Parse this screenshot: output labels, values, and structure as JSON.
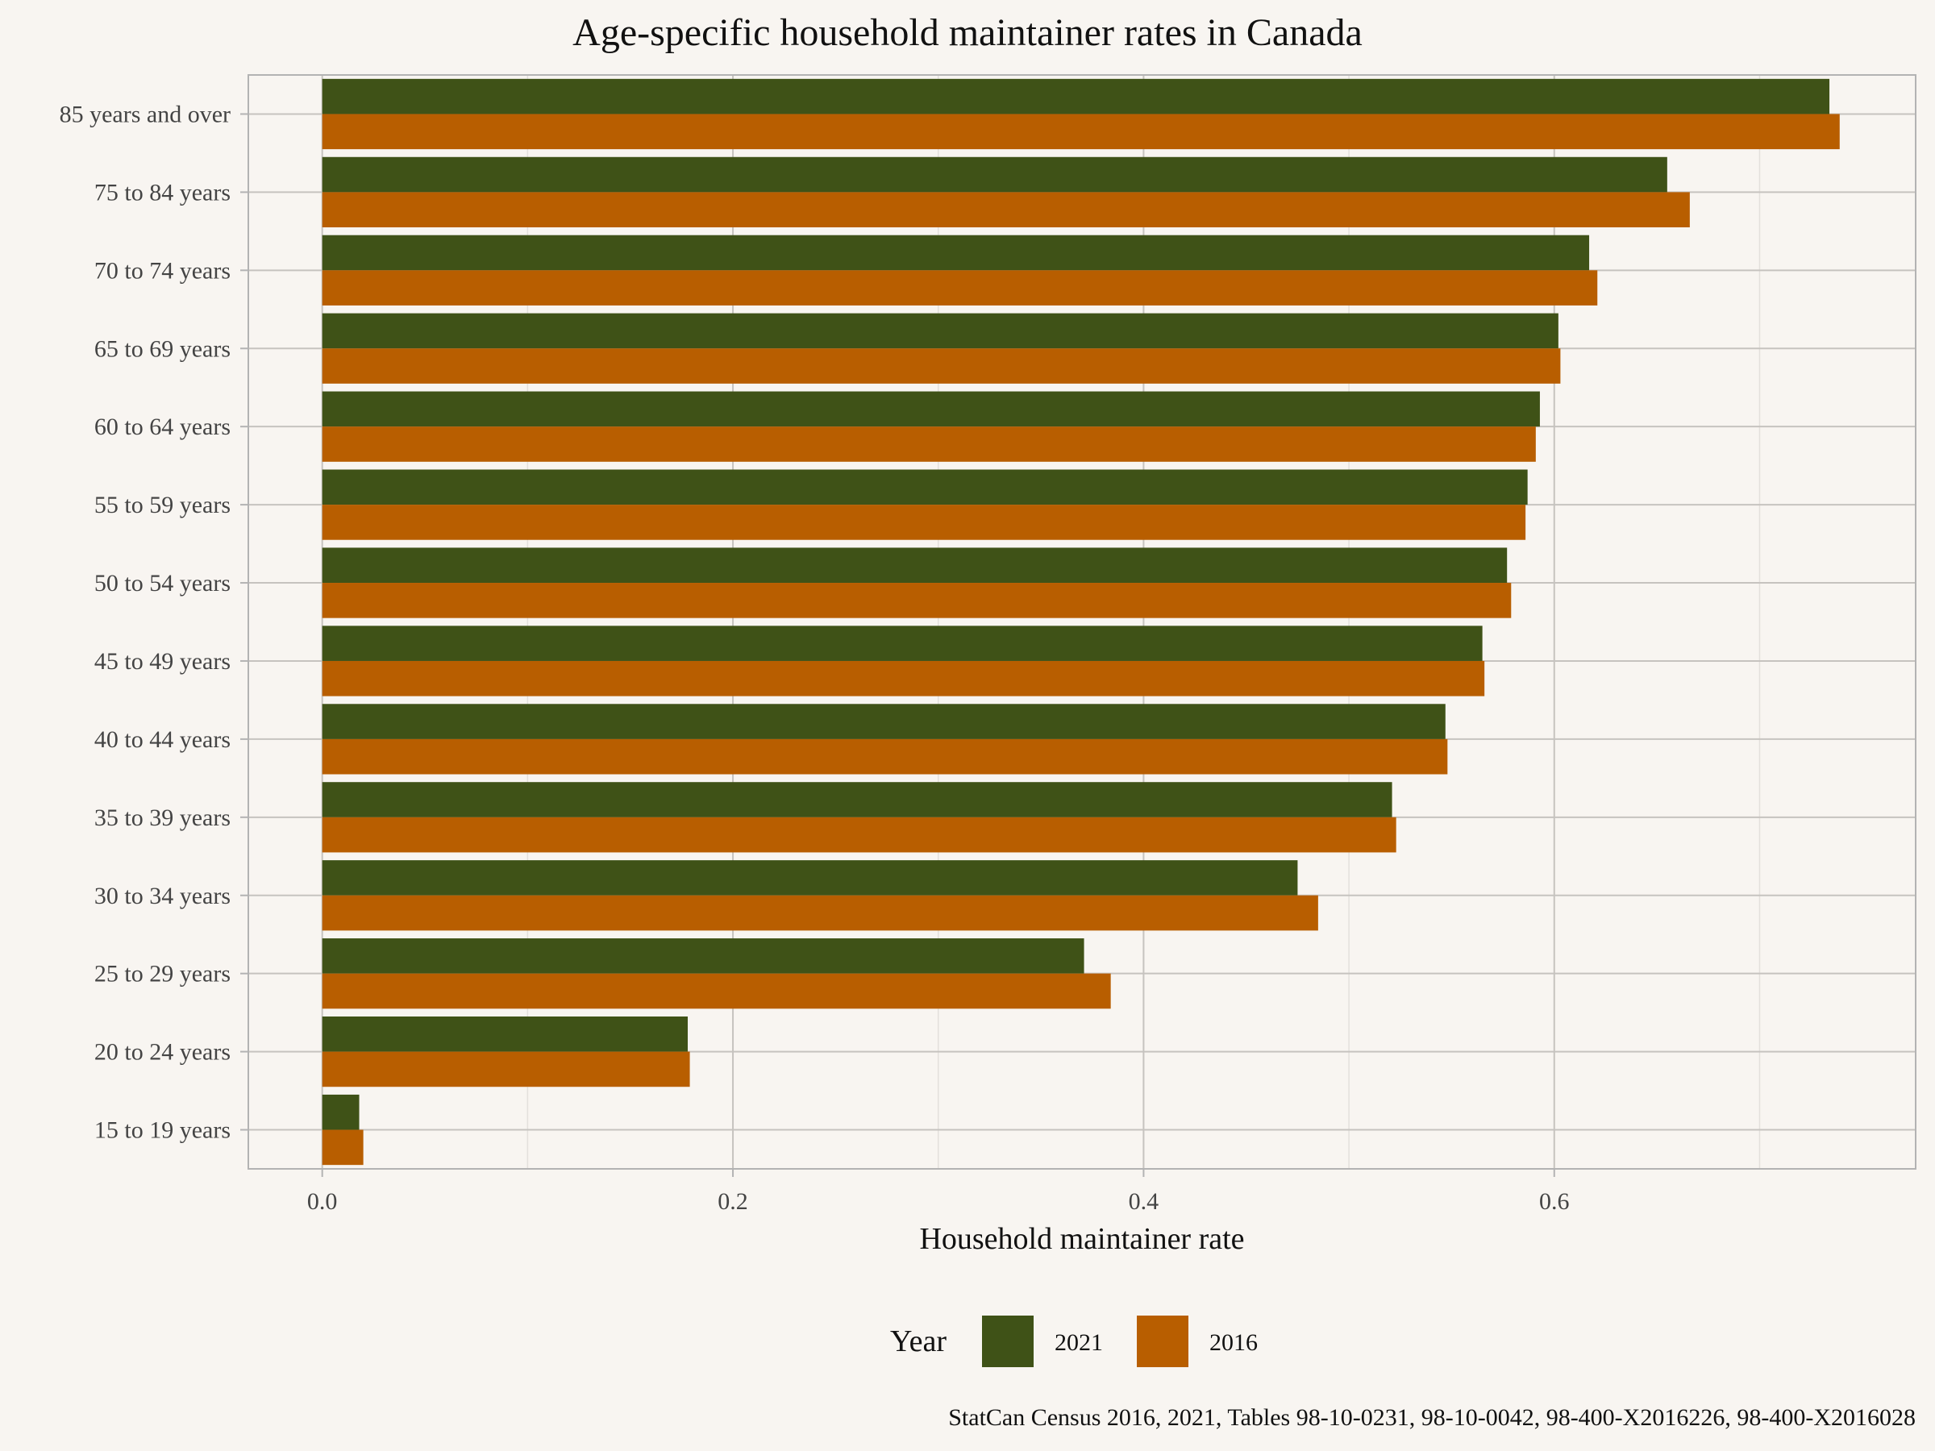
{
  "chart_data": {
    "type": "bar",
    "orientation": "horizontal",
    "title": "Age-specific household maintainer rates in Canada",
    "xlabel": "Household maintainer rate",
    "ylabel": "",
    "xlim": [
      -0.036,
      0.776
    ],
    "x_ticks": [
      0.0,
      0.2,
      0.4,
      0.6
    ],
    "x_tick_labels": [
      "0.0",
      "0.2",
      "0.4",
      "0.6"
    ],
    "grid": true,
    "legend": {
      "title": "Year",
      "position": "bottom"
    },
    "caption": "StatCan Census 2016, 2021, Tables 98-10-0231, 98-10-0042, 98-400-X2016226, 98-400-X2016028",
    "categories": [
      "85 years and over",
      "75 to 84 years",
      "70 to 74 years",
      "65 to 69 years",
      "60 to 64 years",
      "55 to 59 years",
      "50 to 54 years",
      "45 to 49 years",
      "40 to 44 years",
      "35 to 39 years",
      "30 to 34 years",
      "25 to 29 years",
      "20 to 24 years",
      "15 to 19 years"
    ],
    "series": [
      {
        "name": "2021",
        "color": "#3f5217",
        "values": [
          0.734,
          0.655,
          0.617,
          0.602,
          0.593,
          0.587,
          0.577,
          0.565,
          0.547,
          0.521,
          0.475,
          0.371,
          0.178,
          0.018
        ]
      },
      {
        "name": "2016",
        "color": "#b85e00",
        "values": [
          0.739,
          0.666,
          0.621,
          0.603,
          0.591,
          0.586,
          0.579,
          0.566,
          0.548,
          0.523,
          0.485,
          0.384,
          0.179,
          0.02
        ]
      }
    ]
  }
}
